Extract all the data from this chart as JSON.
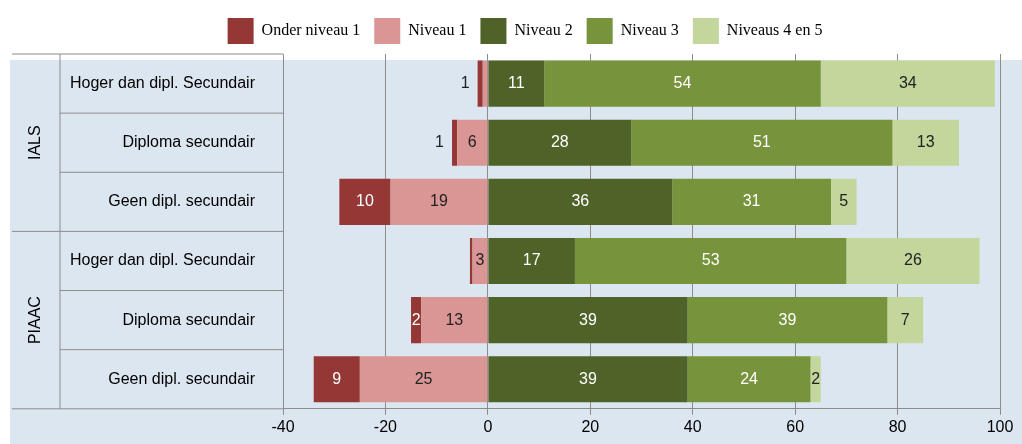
{
  "chart_data": {
    "type": "bar",
    "orientation": "horizontal",
    "categories": [
      "Hoger dan dipl. Secundair",
      "Diploma secundair",
      "Geen dipl. secundair",
      "Hoger dan dipl. Secundair",
      "Diploma secundair",
      "Geen dipl. secundair"
    ],
    "annotations": [
      "IALS",
      "PIAAC"
    ],
    "series": [
      {
        "name": "Niveau 1",
        "color": "#da9694",
        "values": [
          1,
          6,
          19,
          3,
          13,
          25
        ],
        "base": [
          -1,
          -6,
          -19,
          -3,
          -13,
          -25
        ],
        "value_labels": [
          null,
          "6",
          "19",
          "3",
          "13",
          "25"
        ]
      },
      {
        "name": "Onder niveau 1",
        "color": "#953735",
        "values": [
          1,
          1,
          10,
          0.5,
          2,
          9
        ],
        "base": [
          -2,
          -7,
          -29,
          -3.5,
          -15,
          -34
        ],
        "value_labels": [
          "1",
          "1",
          "10",
          null,
          "2",
          "9"
        ]
      },
      {
        "name": "Niveau 2",
        "color": "#4f6228",
        "values": [
          11,
          28,
          36,
          17,
          39,
          39
        ],
        "base": [
          0,
          0,
          0,
          0,
          0,
          0
        ],
        "value_labels": [
          "11",
          "28",
          "36",
          "17",
          "39",
          "39"
        ]
      },
      {
        "name": "Niveau 3",
        "color": "#77933c",
        "values": [
          54,
          51,
          31,
          53,
          39,
          24
        ],
        "base": [
          11,
          28,
          36,
          17,
          39,
          39
        ],
        "value_labels": [
          "54",
          "51",
          "31",
          "53",
          "39",
          "24"
        ]
      },
      {
        "name": "Niveaus 4 en 5",
        "color": "#c3d69b",
        "values": [
          34,
          13,
          5,
          26,
          7,
          2
        ],
        "base": [
          65,
          79,
          67,
          70,
          78,
          63
        ],
        "value_labels": [
          "34",
          "13",
          "5",
          "26",
          "7",
          "2"
        ]
      }
    ],
    "xlim": [
      -40,
      100
    ],
    "xticks": [
      -40,
      -20,
      0,
      20,
      40,
      60,
      80,
      100
    ],
    "grid": "x",
    "legend": "top"
  }
}
